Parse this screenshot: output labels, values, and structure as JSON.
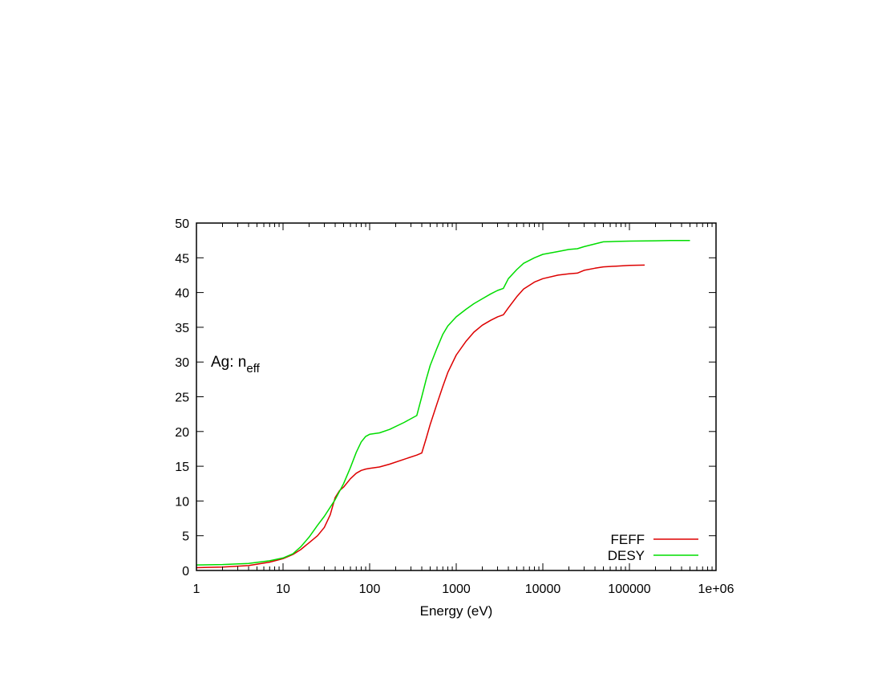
{
  "chart_data": {
    "type": "line",
    "title": "",
    "xlabel": "Energy (eV)",
    "ylabel": "",
    "x_scale": "log",
    "xlim": [
      1,
      1000000
    ],
    "ylim": [
      0,
      50
    ],
    "grid": false,
    "legend_position": "bottom-right",
    "annotation": {
      "text": "Ag: n",
      "sub": "eff"
    },
    "x_ticks": [
      {
        "value": 1,
        "label": "1"
      },
      {
        "value": 10,
        "label": "10"
      },
      {
        "value": 100,
        "label": "100"
      },
      {
        "value": 1000,
        "label": "1000"
      },
      {
        "value": 10000,
        "label": "10000"
      },
      {
        "value": 100000,
        "label": "100000"
      },
      {
        "value": 1000000,
        "label": "1e+06"
      }
    ],
    "y_ticks": [
      {
        "value": 0,
        "label": "0"
      },
      {
        "value": 5,
        "label": "5"
      },
      {
        "value": 10,
        "label": "10"
      },
      {
        "value": 15,
        "label": "15"
      },
      {
        "value": 20,
        "label": "20"
      },
      {
        "value": 25,
        "label": "25"
      },
      {
        "value": 30,
        "label": "30"
      },
      {
        "value": 35,
        "label": "35"
      },
      {
        "value": 40,
        "label": "40"
      },
      {
        "value": 45,
        "label": "45"
      },
      {
        "value": 50,
        "label": "50"
      }
    ],
    "series": [
      {
        "name": "FEFF",
        "color": "#dd0000",
        "x": [
          1,
          2,
          4,
          7,
          10,
          13,
          16,
          20,
          25,
          30,
          35,
          40,
          45,
          50,
          60,
          70,
          80,
          90,
          100,
          130,
          170,
          250,
          350,
          400,
          450,
          500,
          600,
          700,
          800,
          1000,
          1300,
          1600,
          2000,
          2500,
          3000,
          3500,
          4000,
          5000,
          6000,
          8000,
          10000,
          15000,
          20000,
          25000,
          30000,
          40000,
          50000,
          70000,
          100000,
          150000
        ],
        "y": [
          0.4,
          0.5,
          0.7,
          1.2,
          1.7,
          2.3,
          3.0,
          4.0,
          5.0,
          6.2,
          8.0,
          10.5,
          11.5,
          12.0,
          13.2,
          14.0,
          14.4,
          14.6,
          14.7,
          14.9,
          15.3,
          16.0,
          16.6,
          16.9,
          19.0,
          21.0,
          24.0,
          26.5,
          28.5,
          31.0,
          33.0,
          34.3,
          35.3,
          36.0,
          36.5,
          36.8,
          37.8,
          39.4,
          40.5,
          41.5,
          42.0,
          42.5,
          42.7,
          42.8,
          43.2,
          43.5,
          43.7,
          43.8,
          43.9,
          43.95
        ]
      },
      {
        "name": "DESY",
        "color": "#00dd00",
        "x": [
          1,
          2,
          4,
          7,
          10,
          13,
          16,
          20,
          25,
          30,
          40,
          50,
          60,
          70,
          80,
          90,
          100,
          130,
          170,
          250,
          350,
          400,
          450,
          500,
          600,
          700,
          800,
          1000,
          1300,
          1600,
          2000,
          2500,
          3000,
          3500,
          4000,
          5000,
          6000,
          8000,
          10000,
          15000,
          20000,
          25000,
          30000,
          40000,
          50000,
          70000,
          100000,
          200000,
          300000,
          500000
        ],
        "y": [
          0.8,
          0.85,
          1.0,
          1.4,
          1.8,
          2.4,
          3.4,
          4.8,
          6.5,
          7.8,
          10.2,
          12.5,
          14.8,
          17.0,
          18.5,
          19.3,
          19.6,
          19.8,
          20.3,
          21.3,
          22.3,
          25.0,
          27.5,
          29.5,
          32.0,
          34.0,
          35.2,
          36.5,
          37.6,
          38.4,
          39.1,
          39.8,
          40.3,
          40.6,
          42.0,
          43.3,
          44.2,
          45.0,
          45.5,
          45.9,
          46.2,
          46.3,
          46.6,
          47.0,
          47.3,
          47.35,
          47.4,
          47.45,
          47.5,
          47.5
        ]
      }
    ]
  }
}
